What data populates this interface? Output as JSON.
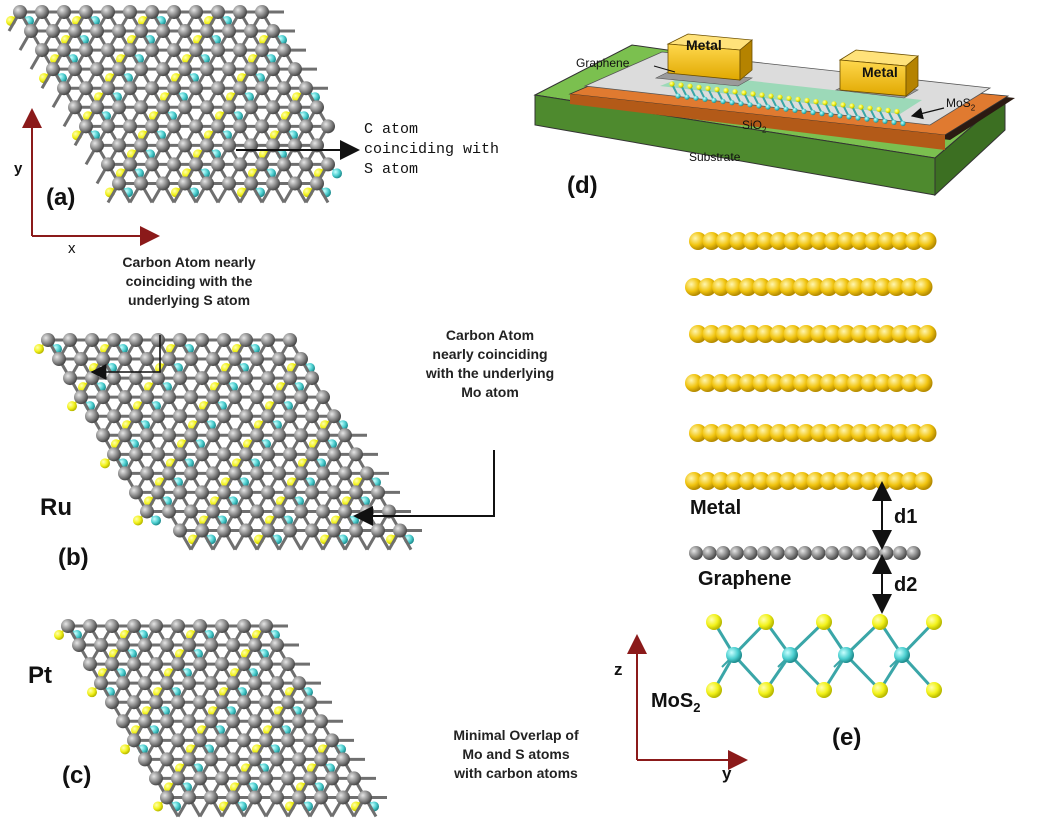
{
  "panel_labels": {
    "a": "(a)",
    "b": "(b)",
    "c": "(c)",
    "d": "(d)",
    "e": "(e)"
  },
  "axes_a": {
    "x": "x",
    "y": "y"
  },
  "axes_e": {
    "x": "y",
    "z": "z"
  },
  "annotations": {
    "a_line1": "C atom",
    "a_line2": "coinciding with",
    "a_line3": "S atom",
    "carbon_s_line1": "Carbon Atom nearly",
    "carbon_s_line2": "coinciding with the",
    "carbon_s_line3": "underlying S atom",
    "carbon_mo_line1": "Carbon Atom",
    "carbon_mo_line2": "nearly coinciding",
    "carbon_mo_line3": "with the underlying",
    "carbon_mo_line4": "Mo atom",
    "minimal_line1": "Minimal Overlap of",
    "minimal_line2": "Mo and S atoms",
    "minimal_line3": "with carbon atoms"
  },
  "metal_names": {
    "b": "Ru",
    "c": "Pt"
  },
  "device": {
    "metal_left": "Metal",
    "metal_right": "Metal",
    "graphene": "Graphene",
    "mos2": "MoS",
    "mos2_sub": "2",
    "sio2": "SiO",
    "sio2_sub": "2",
    "substrate": "Substrate"
  },
  "side_view": {
    "metal": "Metal",
    "graphene": "Graphene",
    "mos2": "MoS",
    "mos2_sub": "2",
    "d1": "d1",
    "d2": "d2"
  },
  "colors": {
    "carbon": "#8a8a8a",
    "sulfur": "#f2f21a",
    "molybdenum": "#4ccfd0",
    "gold": "#f1c40f",
    "axis": "#8b1a1a",
    "substrate": "#6aa84f",
    "sio2": "#d9722b"
  }
}
